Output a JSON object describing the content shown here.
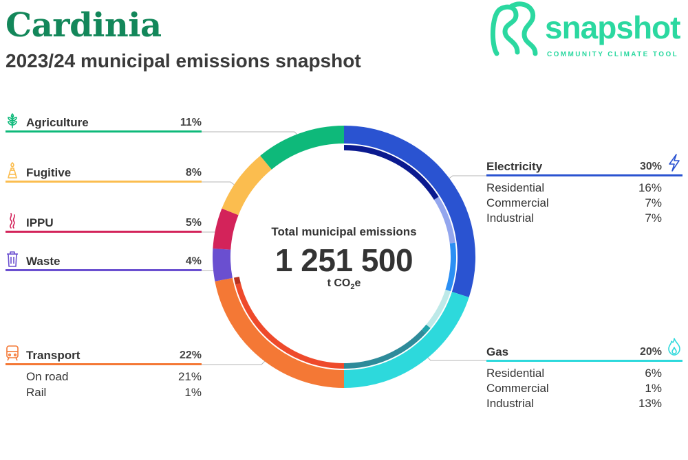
{
  "header": {
    "title": "Cardinia",
    "subtitle": "2023/24 municipal emissions snapshot"
  },
  "logo": {
    "word": "snapshot",
    "tagline": "COMMUNITY CLIMATE TOOL",
    "color": "#2bd8a0"
  },
  "center": {
    "label": "Total municipal emissions",
    "value": "1 251 500",
    "unit_prefix": "t CO",
    "unit_sub": "2",
    "unit_suffix": "e"
  },
  "categories": {
    "agriculture": {
      "name": "Agriculture",
      "pct": "11%",
      "color": "#0eb97a",
      "icon": "wheat-icon"
    },
    "fugitive": {
      "name": "Fugitive",
      "pct": "8%",
      "color": "#fbbd4f",
      "icon": "flare-icon"
    },
    "ippu": {
      "name": "IPPU",
      "pct": "5%",
      "color": "#d3235a",
      "icon": "smoke-icon"
    },
    "waste": {
      "name": "Waste",
      "pct": "4%",
      "color": "#6a4fd0",
      "icon": "bin-icon"
    },
    "transport": {
      "name": "Transport",
      "pct": "22%",
      "color": "#f47835",
      "icon": "train-icon",
      "subs": [
        {
          "name": "On road",
          "pct": "21%"
        },
        {
          "name": "Rail",
          "pct": "1%"
        }
      ]
    },
    "electricity": {
      "name": "Electricity",
      "pct": "30%",
      "color": "#2a53d1",
      "icon": "lightning-icon",
      "subs": [
        {
          "name": "Residential",
          "pct": "16%"
        },
        {
          "name": "Commercial",
          "pct": "7%"
        },
        {
          "name": "Industrial",
          "pct": "7%"
        }
      ]
    },
    "gas": {
      "name": "Gas",
      "pct": "20%",
      "color": "#2dd9dc",
      "icon": "flame-icon",
      "subs": [
        {
          "name": "Residential",
          "pct": "6%"
        },
        {
          "name": "Commercial",
          "pct": "1%"
        },
        {
          "name": "Industrial",
          "pct": "13%"
        }
      ]
    }
  },
  "chart_data": {
    "type": "pie",
    "title": "Total municipal emissions",
    "total": 1251500,
    "unit": "t CO2e",
    "series": [
      {
        "name": "Electricity",
        "value": 30,
        "color": "#2a53d1",
        "subs": [
          {
            "name": "Residential",
            "value": 16,
            "color": "#0b1a8f"
          },
          {
            "name": "Commercial",
            "value": 7,
            "color": "#93a6ee"
          },
          {
            "name": "Industrial",
            "value": 7,
            "color": "#2b8ff4"
          }
        ]
      },
      {
        "name": "Gas",
        "value": 20,
        "color": "#2dd9dc",
        "subs": [
          {
            "name": "Residential",
            "value": 6,
            "color": "#bde9e8"
          },
          {
            "name": "Commercial",
            "value": 1,
            "color": "#1fa3aa"
          },
          {
            "name": "Industrial",
            "value": 13,
            "color": "#2e8b9a"
          }
        ]
      },
      {
        "name": "Transport",
        "value": 22,
        "color": "#f47835",
        "subs": [
          {
            "name": "On road",
            "value": 21,
            "color": "#ee4a2b"
          },
          {
            "name": "Rail",
            "value": 1,
            "color": "#b8321e"
          }
        ]
      },
      {
        "name": "Waste",
        "value": 4,
        "color": "#6a4fd0"
      },
      {
        "name": "IPPU",
        "value": 5,
        "color": "#d3235a"
      },
      {
        "name": "Fugitive",
        "value": 8,
        "color": "#fbbd4f"
      },
      {
        "name": "Agriculture",
        "value": 11,
        "color": "#0eb97a"
      }
    ]
  }
}
